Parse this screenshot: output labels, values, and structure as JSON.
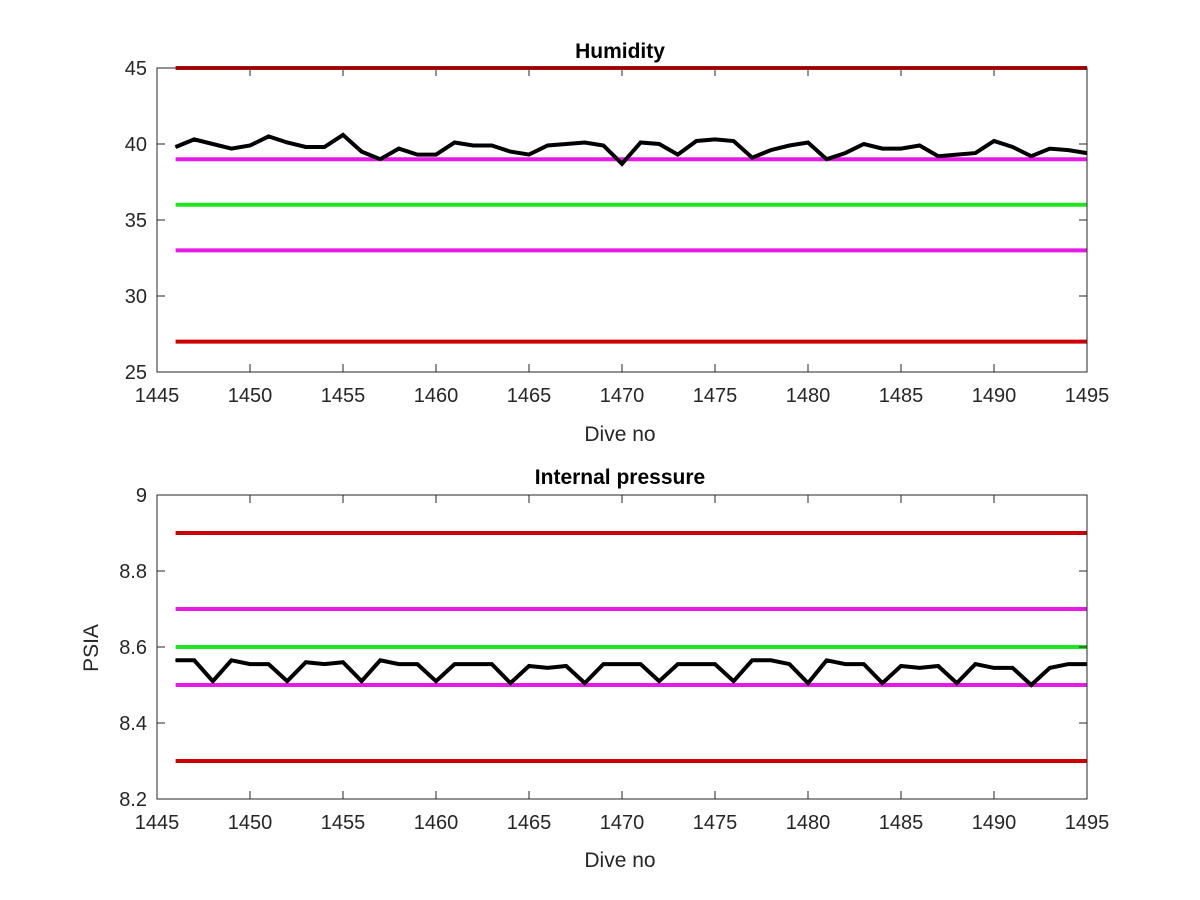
{
  "chart_data": [
    {
      "type": "line",
      "title": "Humidity",
      "xlabel": "Dive no",
      "ylabel": "",
      "xlim": [
        1445,
        1495
      ],
      "ylim": [
        25,
        45
      ],
      "xticks": [
        "1445",
        "1450",
        "1455",
        "1460",
        "1465",
        "1470",
        "1475",
        "1480",
        "1485",
        "1490",
        "1495"
      ],
      "yticks": [
        "25",
        "30",
        "35",
        "40",
        "45"
      ],
      "grid": false,
      "reference_lines": [
        {
          "y": 45,
          "color": "#cc0000"
        },
        {
          "y": 39,
          "color": "#e619e6"
        },
        {
          "y": 36,
          "color": "#1ee61e"
        },
        {
          "y": 33,
          "color": "#e619e6"
        },
        {
          "y": 27,
          "color": "#cc0000"
        }
      ],
      "series": [
        {
          "color": "#000000",
          "x": [
            1446,
            1447,
            1448,
            1449,
            1450,
            1451,
            1452,
            1453,
            1454,
            1455,
            1456,
            1457,
            1458,
            1459,
            1460,
            1461,
            1462,
            1463,
            1464,
            1465,
            1466,
            1467,
            1468,
            1469,
            1470,
            1471,
            1472,
            1473,
            1474,
            1475,
            1476,
            1477,
            1478,
            1479,
            1480,
            1481,
            1482,
            1483,
            1484,
            1485,
            1486,
            1487,
            1488,
            1489,
            1490,
            1491,
            1492,
            1493,
            1494,
            1495
          ],
          "values": [
            39.8,
            40.3,
            40.0,
            39.7,
            39.9,
            40.5,
            40.1,
            39.8,
            39.8,
            40.6,
            39.5,
            39.0,
            39.7,
            39.3,
            39.3,
            40.1,
            39.9,
            39.9,
            39.5,
            39.3,
            39.9,
            40.0,
            40.1,
            39.9,
            38.7,
            40.1,
            40.0,
            39.3,
            40.2,
            40.3,
            40.2,
            39.1,
            39.6,
            39.9,
            40.1,
            39.0,
            39.4,
            40.0,
            39.7,
            39.7,
            39.9,
            39.2,
            39.3,
            39.4,
            40.2,
            39.8,
            39.2,
            39.7,
            39.6,
            39.4
          ]
        }
      ]
    },
    {
      "type": "line",
      "title": "Internal pressure",
      "xlabel": "Dive no",
      "ylabel": "PSIA",
      "xlim": [
        1445,
        1495
      ],
      "ylim": [
        8.2,
        9.0
      ],
      "xticks": [
        "1445",
        "1450",
        "1455",
        "1460",
        "1465",
        "1470",
        "1475",
        "1480",
        "1485",
        "1490",
        "1495"
      ],
      "yticks": [
        "8.2",
        "8.4",
        "8.6",
        "8.8",
        "9"
      ],
      "grid": false,
      "reference_lines": [
        {
          "y": 8.9,
          "color": "#cc0000"
        },
        {
          "y": 8.7,
          "color": "#e619e6"
        },
        {
          "y": 8.6,
          "color": "#1ee61e"
        },
        {
          "y": 8.5,
          "color": "#e619e6"
        },
        {
          "y": 8.3,
          "color": "#cc0000"
        }
      ],
      "series": [
        {
          "color": "#000000",
          "x": [
            1446,
            1447,
            1448,
            1449,
            1450,
            1451,
            1452,
            1453,
            1454,
            1455,
            1456,
            1457,
            1458,
            1459,
            1460,
            1461,
            1462,
            1463,
            1464,
            1465,
            1466,
            1467,
            1468,
            1469,
            1470,
            1471,
            1472,
            1473,
            1474,
            1475,
            1476,
            1477,
            1478,
            1479,
            1480,
            1481,
            1482,
            1483,
            1484,
            1485,
            1486,
            1487,
            1488,
            1489,
            1490,
            1491,
            1492,
            1493,
            1494,
            1495
          ],
          "values": [
            8.565,
            8.565,
            8.51,
            8.565,
            8.555,
            8.555,
            8.51,
            8.56,
            8.555,
            8.56,
            8.51,
            8.565,
            8.555,
            8.555,
            8.51,
            8.555,
            8.555,
            8.555,
            8.505,
            8.55,
            8.545,
            8.55,
            8.505,
            8.555,
            8.555,
            8.555,
            8.51,
            8.555,
            8.555,
            8.555,
            8.51,
            8.565,
            8.565,
            8.555,
            8.505,
            8.565,
            8.555,
            8.555,
            8.505,
            8.55,
            8.545,
            8.55,
            8.505,
            8.555,
            8.545,
            8.545,
            8.5,
            8.545,
            8.555,
            8.555
          ]
        }
      ]
    }
  ]
}
